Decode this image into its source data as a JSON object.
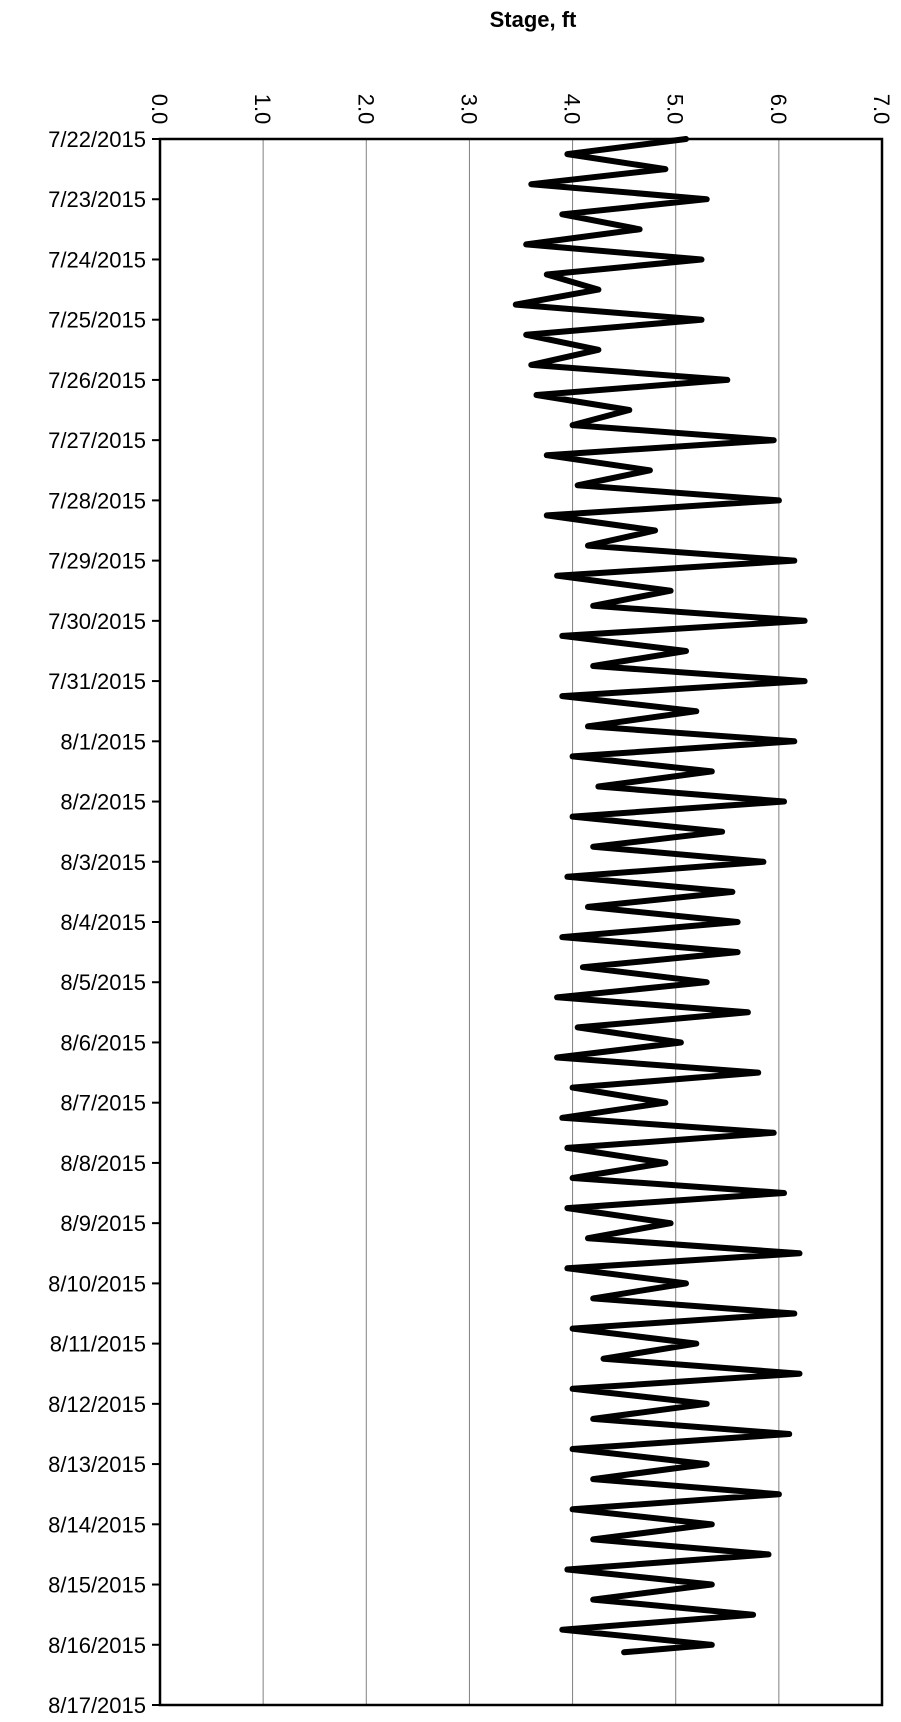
{
  "chart_data": {
    "type": "line",
    "title": "",
    "xlabel": "Stage, ft",
    "ylabel": "",
    "orientation": "date axis vertical (top to bottom), stage axis horizontal along top",
    "xlim": [
      0.0,
      7.0
    ],
    "x_ticks": [
      "0.0",
      "1.0",
      "2.0",
      "3.0",
      "4.0",
      "5.0",
      "6.0",
      "7.0"
    ],
    "ylim": [
      "7/22/2015",
      "8/17/2015"
    ],
    "date_ticks": [
      "7/22/2015",
      "7/23/2015",
      "7/24/2015",
      "7/25/2015",
      "7/26/2015",
      "7/27/2015",
      "7/28/2015",
      "7/29/2015",
      "7/30/2015",
      "7/31/2015",
      "8/1/2015",
      "8/2/2015",
      "8/3/2015",
      "8/4/2015",
      "8/5/2015",
      "8/6/2015",
      "8/7/2015",
      "8/8/2015",
      "8/9/2015",
      "8/10/2015",
      "8/11/2015",
      "8/12/2015",
      "8/13/2015",
      "8/14/2015",
      "8/15/2015",
      "8/16/2015",
      "8/17/2015"
    ],
    "grid": "vertical gridlines at each stage tick",
    "line_color": "#000000",
    "series": [
      {
        "points": [
          [
            "7/22/2015 00:00",
            5.1
          ],
          [
            "7/22/2015 06:00",
            3.95
          ],
          [
            "7/22/2015 12:00",
            4.9
          ],
          [
            "7/22/2015 18:00",
            3.6
          ],
          [
            "7/23/2015 00:00",
            5.3
          ],
          [
            "7/23/2015 06:00",
            3.9
          ],
          [
            "7/23/2015 12:00",
            4.65
          ],
          [
            "7/23/2015 18:00",
            3.55
          ],
          [
            "7/24/2015 00:00",
            5.25
          ],
          [
            "7/24/2015 06:00",
            3.75
          ],
          [
            "7/24/2015 12:00",
            4.25
          ],
          [
            "7/24/2015 18:00",
            3.45
          ],
          [
            "7/25/2015 00:00",
            5.25
          ],
          [
            "7/25/2015 06:00",
            3.55
          ],
          [
            "7/25/2015 12:00",
            4.25
          ],
          [
            "7/25/2015 18:00",
            3.6
          ],
          [
            "7/26/2015 00:00",
            5.5
          ],
          [
            "7/26/2015 06:00",
            3.65
          ],
          [
            "7/26/2015 12:00",
            4.55
          ],
          [
            "7/26/2015 18:00",
            4.0
          ],
          [
            "7/27/2015 00:00",
            5.95
          ],
          [
            "7/27/2015 06:00",
            3.75
          ],
          [
            "7/27/2015 12:00",
            4.75
          ],
          [
            "7/27/2015 18:00",
            4.05
          ],
          [
            "7/28/2015 00:00",
            6.0
          ],
          [
            "7/28/2015 06:00",
            3.75
          ],
          [
            "7/28/2015 12:00",
            4.8
          ],
          [
            "7/28/2015 18:00",
            4.15
          ],
          [
            "7/29/2015 00:00",
            6.15
          ],
          [
            "7/29/2015 06:00",
            3.85
          ],
          [
            "7/29/2015 12:00",
            4.95
          ],
          [
            "7/29/2015 18:00",
            4.2
          ],
          [
            "7/30/2015 00:00",
            6.25
          ],
          [
            "7/30/2015 06:00",
            3.9
          ],
          [
            "7/30/2015 12:00",
            5.1
          ],
          [
            "7/30/2015 18:00",
            4.2
          ],
          [
            "7/31/2015 00:00",
            6.25
          ],
          [
            "7/31/2015 06:00",
            3.9
          ],
          [
            "7/31/2015 12:00",
            5.2
          ],
          [
            "7/31/2015 18:00",
            4.15
          ],
          [
            "8/1/2015 00:00",
            6.15
          ],
          [
            "8/1/2015 06:00",
            4.0
          ],
          [
            "8/1/2015 12:00",
            5.35
          ],
          [
            "8/1/2015 18:00",
            4.25
          ],
          [
            "8/2/2015 00:00",
            6.05
          ],
          [
            "8/2/2015 06:00",
            4.0
          ],
          [
            "8/2/2015 12:00",
            5.45
          ],
          [
            "8/2/2015 18:00",
            4.2
          ],
          [
            "8/3/2015 00:00",
            5.85
          ],
          [
            "8/3/2015 06:00",
            3.95
          ],
          [
            "8/3/2015 12:00",
            5.55
          ],
          [
            "8/3/2015 18:00",
            4.15
          ],
          [
            "8/4/2015 00:00",
            5.6
          ],
          [
            "8/4/2015 06:00",
            3.9
          ],
          [
            "8/4/2015 12:00",
            5.6
          ],
          [
            "8/4/2015 18:00",
            4.1
          ],
          [
            "8/5/2015 00:00",
            5.3
          ],
          [
            "8/5/2015 06:00",
            3.85
          ],
          [
            "8/5/2015 12:00",
            5.7
          ],
          [
            "8/5/2015 18:00",
            4.05
          ],
          [
            "8/6/2015 00:00",
            5.05
          ],
          [
            "8/6/2015 06:00",
            3.85
          ],
          [
            "8/6/2015 12:00",
            5.8
          ],
          [
            "8/6/2015 18:00",
            4.0
          ],
          [
            "8/7/2015 00:00",
            4.9
          ],
          [
            "8/7/2015 06:00",
            3.9
          ],
          [
            "8/7/2015 12:00",
            5.95
          ],
          [
            "8/7/2015 18:00",
            3.95
          ],
          [
            "8/8/2015 00:00",
            4.9
          ],
          [
            "8/8/2015 06:00",
            4.0
          ],
          [
            "8/8/2015 12:00",
            6.05
          ],
          [
            "8/8/2015 18:00",
            3.95
          ],
          [
            "8/9/2015 00:00",
            4.95
          ],
          [
            "8/9/2015 06:00",
            4.15
          ],
          [
            "8/9/2015 12:00",
            6.2
          ],
          [
            "8/9/2015 18:00",
            3.95
          ],
          [
            "8/10/2015 00:00",
            5.1
          ],
          [
            "8/10/2015 06:00",
            4.2
          ],
          [
            "8/10/2015 12:00",
            6.15
          ],
          [
            "8/10/2015 18:00",
            4.0
          ],
          [
            "8/11/2015 00:00",
            5.2
          ],
          [
            "8/11/2015 06:00",
            4.3
          ],
          [
            "8/11/2015 12:00",
            6.2
          ],
          [
            "8/11/2015 18:00",
            4.0
          ],
          [
            "8/12/2015 00:00",
            5.3
          ],
          [
            "8/12/2015 06:00",
            4.2
          ],
          [
            "8/12/2015 12:00",
            6.1
          ],
          [
            "8/12/2015 18:00",
            4.0
          ],
          [
            "8/13/2015 00:00",
            5.3
          ],
          [
            "8/13/2015 06:00",
            4.2
          ],
          [
            "8/13/2015 12:00",
            6.0
          ],
          [
            "8/13/2015 18:00",
            4.0
          ],
          [
            "8/14/2015 00:00",
            5.35
          ],
          [
            "8/14/2015 06:00",
            4.2
          ],
          [
            "8/14/2015 12:00",
            5.9
          ],
          [
            "8/14/2015 18:00",
            3.95
          ],
          [
            "8/15/2015 00:00",
            5.35
          ],
          [
            "8/15/2015 06:00",
            4.2
          ],
          [
            "8/15/2015 12:00",
            5.75
          ],
          [
            "8/15/2015 18:00",
            3.9
          ],
          [
            "8/16/2015 00:00",
            5.35
          ],
          [
            "8/16/2015 03:00",
            4.5
          ]
        ]
      }
    ]
  }
}
